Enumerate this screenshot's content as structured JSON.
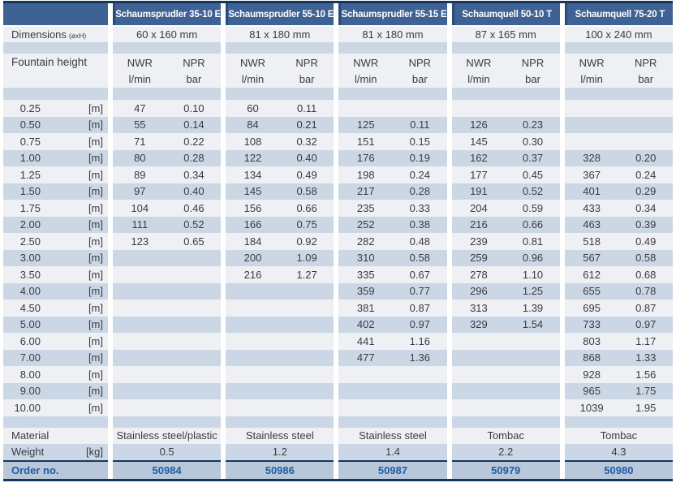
{
  "table": {
    "products": [
      "Schaumsprudler 35-10 E",
      "Schaumsprudler 55-10 E",
      "Schaumsprudler 55-15 E",
      "Schaumquell 50-10 T",
      "Schaumquell 75-20 T"
    ],
    "dimensions": {
      "label": "Dimensions",
      "label_sub": "(øxH)",
      "values": [
        "60 x 160 mm",
        "81 x 180 mm",
        "81 x 180 mm",
        "87 x 165 mm",
        "100 x 240 mm"
      ]
    },
    "fountain_height": {
      "label": "Fountain height",
      "nwr": "NWR",
      "npr": "NPR",
      "nwr_unit": "l/min",
      "npr_unit": "bar"
    },
    "height_rows": [
      {
        "h": "0.25",
        "u": "[m]",
        "v": [
          [
            "47",
            "0.10"
          ],
          [
            "60",
            "0.11"
          ],
          [
            "",
            ""
          ],
          [
            "",
            ""
          ],
          [
            "",
            ""
          ]
        ]
      },
      {
        "h": "0.50",
        "u": "[m]",
        "v": [
          [
            "55",
            "0.14"
          ],
          [
            "84",
            "0.21"
          ],
          [
            "125",
            "0.11"
          ],
          [
            "126",
            "0.23"
          ],
          [
            "",
            ""
          ]
        ]
      },
      {
        "h": "0.75",
        "u": "[m]",
        "v": [
          [
            "71",
            "0.22"
          ],
          [
            "108",
            "0.32"
          ],
          [
            "151",
            "0.15"
          ],
          [
            "145",
            "0.30"
          ],
          [
            "",
            ""
          ]
        ]
      },
      {
        "h": "1.00",
        "u": "[m]",
        "v": [
          [
            "80",
            "0.28"
          ],
          [
            "122",
            "0.40"
          ],
          [
            "176",
            "0.19"
          ],
          [
            "162",
            "0.37"
          ],
          [
            "328",
            "0.20"
          ]
        ]
      },
      {
        "h": "1.25",
        "u": "[m]",
        "v": [
          [
            "89",
            "0.34"
          ],
          [
            "134",
            "0.49"
          ],
          [
            "198",
            "0.24"
          ],
          [
            "177",
            "0.45"
          ],
          [
            "367",
            "0.24"
          ]
        ]
      },
      {
        "h": "1.50",
        "u": "[m]",
        "v": [
          [
            "97",
            "0.40"
          ],
          [
            "145",
            "0.58"
          ],
          [
            "217",
            "0.28"
          ],
          [
            "191",
            "0.52"
          ],
          [
            "401",
            "0.29"
          ]
        ]
      },
      {
        "h": "1.75",
        "u": "[m]",
        "v": [
          [
            "104",
            "0.46"
          ],
          [
            "156",
            "0.66"
          ],
          [
            "235",
            "0.33"
          ],
          [
            "204",
            "0.59"
          ],
          [
            "433",
            "0.34"
          ]
        ]
      },
      {
        "h": "2.00",
        "u": "[m]",
        "v": [
          [
            "111",
            "0.52"
          ],
          [
            "166",
            "0.75"
          ],
          [
            "252",
            "0.38"
          ],
          [
            "216",
            "0.66"
          ],
          [
            "463",
            "0.39"
          ]
        ]
      },
      {
        "h": "2.50",
        "u": "[m]",
        "v": [
          [
            "123",
            "0.65"
          ],
          [
            "184",
            "0.92"
          ],
          [
            "282",
            "0.48"
          ],
          [
            "239",
            "0.81"
          ],
          [
            "518",
            "0.49"
          ]
        ]
      },
      {
        "h": "3.00",
        "u": "[m]",
        "v": [
          [
            "",
            ""
          ],
          [
            "200",
            "1.09"
          ],
          [
            "310",
            "0.58"
          ],
          [
            "259",
            "0.96"
          ],
          [
            "567",
            "0.58"
          ]
        ]
      },
      {
        "h": "3.50",
        "u": "[m]",
        "v": [
          [
            "",
            ""
          ],
          [
            "216",
            "1.27"
          ],
          [
            "335",
            "0.67"
          ],
          [
            "278",
            "1.10"
          ],
          [
            "612",
            "0.68"
          ]
        ]
      },
      {
        "h": "4.00",
        "u": "[m]",
        "v": [
          [
            "",
            ""
          ],
          [
            "",
            ""
          ],
          [
            "359",
            "0.77"
          ],
          [
            "296",
            "1.25"
          ],
          [
            "655",
            "0.78"
          ]
        ]
      },
      {
        "h": "4.50",
        "u": "[m]",
        "v": [
          [
            "",
            ""
          ],
          [
            "",
            ""
          ],
          [
            "381",
            "0.87"
          ],
          [
            "313",
            "1.39"
          ],
          [
            "695",
            "0.87"
          ]
        ]
      },
      {
        "h": "5.00",
        "u": "[m]",
        "v": [
          [
            "",
            ""
          ],
          [
            "",
            ""
          ],
          [
            "402",
            "0.97"
          ],
          [
            "329",
            "1.54"
          ],
          [
            "733",
            "0.97"
          ]
        ]
      },
      {
        "h": "6.00",
        "u": "[m]",
        "v": [
          [
            "",
            ""
          ],
          [
            "",
            ""
          ],
          [
            "441",
            "1.16"
          ],
          [
            "",
            ""
          ],
          [
            "803",
            "1.17"
          ]
        ]
      },
      {
        "h": "7.00",
        "u": "[m]",
        "v": [
          [
            "",
            ""
          ],
          [
            "",
            ""
          ],
          [
            "477",
            "1.36"
          ],
          [
            "",
            ""
          ],
          [
            "868",
            "1.33"
          ]
        ]
      },
      {
        "h": "8.00",
        "u": "[m]",
        "v": [
          [
            "",
            ""
          ],
          [
            "",
            ""
          ],
          [
            "",
            ""
          ],
          [
            "",
            ""
          ],
          [
            "928",
            "1.56"
          ]
        ]
      },
      {
        "h": "9.00",
        "u": "[m]",
        "v": [
          [
            "",
            ""
          ],
          [
            "",
            ""
          ],
          [
            "",
            ""
          ],
          [
            "",
            ""
          ],
          [
            "965",
            "1.75"
          ]
        ]
      },
      {
        "h": "10.00",
        "u": "[m]",
        "v": [
          [
            "",
            ""
          ],
          [
            "",
            ""
          ],
          [
            "",
            ""
          ],
          [
            "",
            ""
          ],
          [
            "1039",
            "1.95"
          ]
        ]
      }
    ],
    "material": {
      "label": "Material",
      "values": [
        "Stainless steel/plastic",
        "Stainless steel",
        "Stainless steel",
        "Tombac",
        "Tombac"
      ]
    },
    "weight": {
      "label": "Weight",
      "unit": "[kg]",
      "values": [
        "0.5",
        "1.2",
        "1.4",
        "2.2",
        "4.3"
      ]
    },
    "order": {
      "label": "Order no.",
      "values": [
        "50984",
        "50986",
        "50987",
        "50979",
        "50980"
      ]
    },
    "colors": {
      "header_bg": "#3e6294",
      "header_border": "#2a4a78",
      "navy_line": "#17365d",
      "row_light": "#eef0f4",
      "row_blue": "#ccd7e6",
      "order_bg": "#b9c7db",
      "order_text": "#1e5da6"
    }
  }
}
